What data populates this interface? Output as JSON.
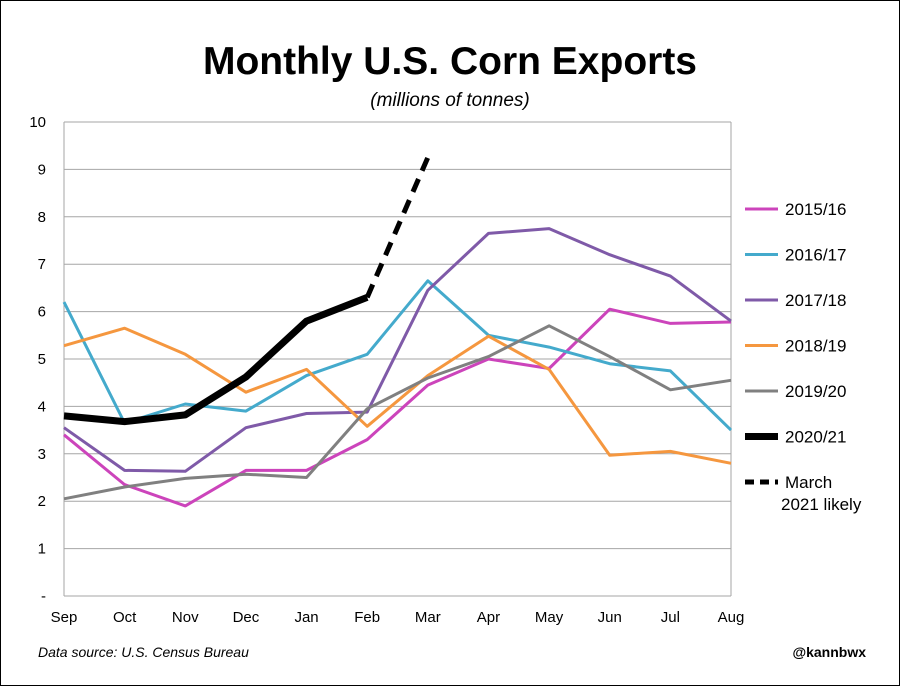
{
  "chart_data": {
    "type": "line",
    "title": "Monthly U.S. Corn Exports",
    "subtitle": "(millions of tonnes)",
    "xlabel": "",
    "ylabel": "",
    "categories": [
      "Sep",
      "Oct",
      "Nov",
      "Dec",
      "Jan",
      "Feb",
      "Mar",
      "Apr",
      "May",
      "Jun",
      "Jul",
      "Aug"
    ],
    "yticks": [
      "-",
      "1",
      "2",
      "3",
      "4",
      "5",
      "6",
      "7",
      "8",
      "9",
      "10"
    ],
    "ylim": [
      0,
      10
    ],
    "grid": true,
    "legend_position": "right",
    "series": [
      {
        "name": "2015/16",
        "color": "#cc44bb",
        "style": "solid",
        "values": [
          3.4,
          2.35,
          1.9,
          2.65,
          2.65,
          3.3,
          4.45,
          5.0,
          4.8,
          6.05,
          5.75,
          5.78
        ]
      },
      {
        "name": "2016/17",
        "color": "#44aacc",
        "style": "solid",
        "values": [
          6.2,
          3.65,
          4.05,
          3.9,
          4.65,
          5.1,
          6.65,
          5.5,
          5.25,
          4.9,
          4.75,
          3.5
        ]
      },
      {
        "name": "2017/18",
        "color": "#7f5aa8",
        "style": "solid",
        "values": [
          3.55,
          2.65,
          2.63,
          3.55,
          3.85,
          3.88,
          6.45,
          7.65,
          7.75,
          7.2,
          6.75,
          5.8
        ]
      },
      {
        "name": "2018/19",
        "color": "#f5973f",
        "style": "solid",
        "values": [
          5.28,
          5.65,
          5.1,
          4.3,
          4.78,
          3.58,
          4.65,
          5.48,
          4.78,
          2.97,
          3.05,
          2.8
        ]
      },
      {
        "name": "2019/20",
        "color": "#808080",
        "style": "solid",
        "values": [
          2.05,
          2.3,
          2.48,
          2.57,
          2.5,
          3.95,
          4.6,
          5.05,
          5.7,
          5.05,
          4.35,
          4.55
        ]
      },
      {
        "name": "2020/21",
        "color": "#000000",
        "style": "bold",
        "values": [
          3.8,
          3.68,
          3.82,
          4.62,
          5.8,
          6.3,
          null,
          null,
          null,
          null,
          null,
          null
        ]
      },
      {
        "name": "March 2021 likely",
        "legend_lines": [
          "March",
          "2021 likely"
        ],
        "color": "#000000",
        "style": "dashed",
        "values": [
          null,
          null,
          null,
          null,
          null,
          6.3,
          9.25,
          null,
          null,
          null,
          null,
          null
        ]
      }
    ]
  },
  "footer": {
    "source": "Data source: U.S. Census Bureau",
    "handle": "@kannbwx"
  }
}
